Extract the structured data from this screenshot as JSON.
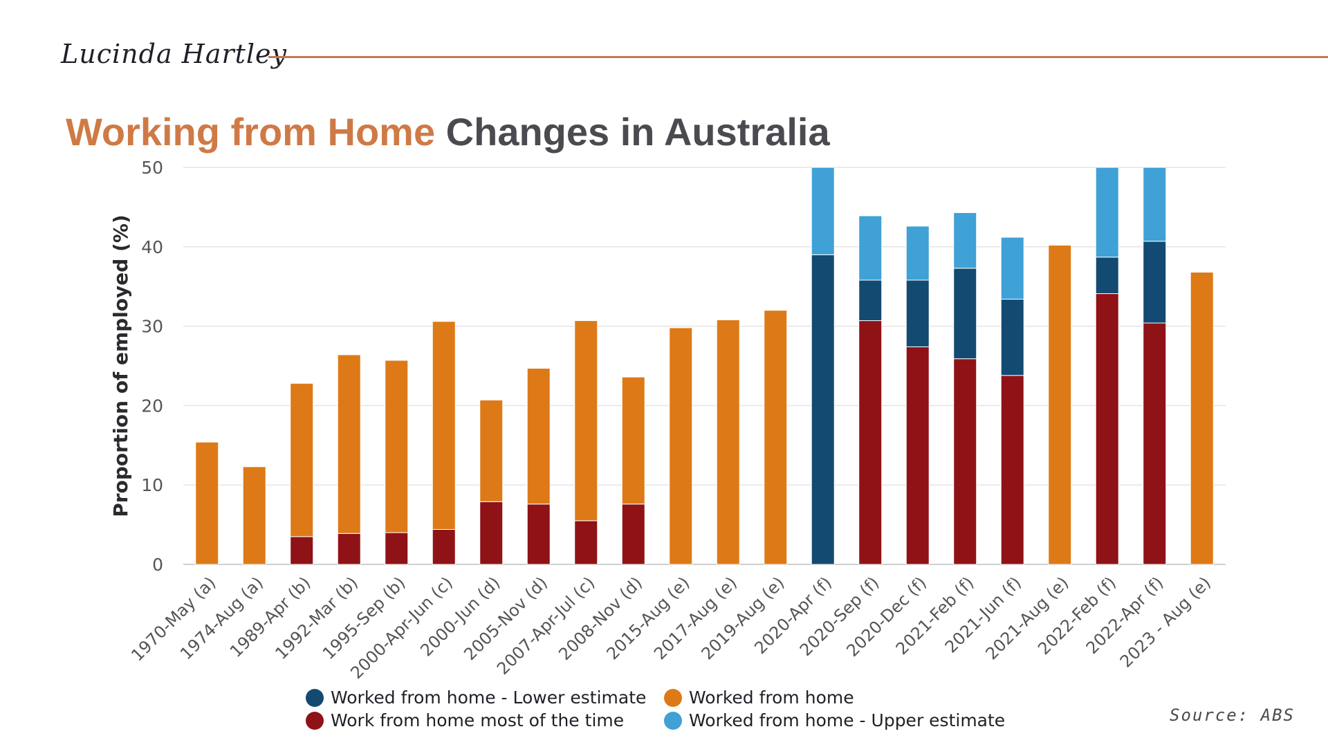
{
  "header": {
    "author": "Lucinda Hartley",
    "title_accent": "Working from Home",
    "title_rest": "Changes in Australia",
    "source": "Source: ABS"
  },
  "colors": {
    "lower_estimate": "#134a72",
    "worked_from_home": "#dd7a17",
    "most_of_time": "#8f1217",
    "upper_estimate": "#3fa1d6",
    "accent": "#cf7a46",
    "grid": "#e4e4e4"
  },
  "chart_data": {
    "type": "bar",
    "stacked": true,
    "title": "Working from Home Changes in Australia",
    "ylabel": "Proportion of employed (%)",
    "xlabel": "",
    "ylim": [
      0,
      50
    ],
    "yticks": [
      0,
      10,
      20,
      30,
      40,
      50
    ],
    "grid": true,
    "legend_position": "bottom",
    "categories": [
      "1970-May (a)",
      "1974-Aug (a)",
      "1989-Apr (b)",
      "1992-Mar (b)",
      "1995-Sep (b)",
      "2000-Apr-Jun (c)",
      "2000-Jun (d)",
      "2005-Nov (d)",
      "2007-Apr-Jul (c)",
      "2008-Nov (d)",
      "2015-Aug (e)",
      "2017-Aug (e)",
      "2019-Aug (e)",
      "2020-Apr (f)",
      "2020-Sep (f)",
      "2020-Dec (f)",
      "2021-Feb (f)",
      "2021-Jun (f)",
      "2021-Aug (e)",
      "2022-Feb (f)",
      "2022-Apr (f)",
      "2023 - Aug (e)"
    ],
    "series": [
      {
        "name": "Work from home most of the time",
        "color_key": "most_of_time",
        "values": [
          0,
          0,
          3.5,
          3.9,
          4.0,
          4.4,
          7.9,
          7.6,
          5.5,
          7.6,
          0,
          0,
          0,
          0,
          30.7,
          27.4,
          25.9,
          23.8,
          0,
          34.1,
          30.4,
          0
        ]
      },
      {
        "name": "Worked from home - Lower estimate",
        "color_key": "lower_estimate",
        "values": [
          0,
          0,
          0,
          0,
          0,
          0,
          0,
          0,
          0,
          0,
          0,
          0,
          0,
          39.0,
          5.1,
          8.4,
          11.4,
          9.6,
          0,
          4.6,
          10.3,
          0
        ]
      },
      {
        "name": "Worked from home",
        "color_key": "worked_from_home",
        "values": [
          15.4,
          12.3,
          19.3,
          22.5,
          21.7,
          26.2,
          12.8,
          17.1,
          25.2,
          16.0,
          29.8,
          30.8,
          32.0,
          0,
          0,
          0,
          0,
          0,
          40.2,
          0,
          0,
          36.8
        ]
      },
      {
        "name": "Worked from home - Upper estimate",
        "color_key": "upper_estimate",
        "values": [
          0,
          0,
          0,
          0,
          0,
          0,
          0,
          0,
          0,
          0,
          0,
          0,
          0,
          11.0,
          8.1,
          6.8,
          7.0,
          7.8,
          0,
          11.3,
          9.3,
          0
        ]
      }
    ],
    "legend": [
      {
        "label": "Worked from home - Lower estimate",
        "color_key": "lower_estimate"
      },
      {
        "label": "Worked from home",
        "color_key": "worked_from_home"
      },
      {
        "label": "Work from home most of the time",
        "color_key": "most_of_time"
      },
      {
        "label": "Worked from home - Upper estimate",
        "color_key": "upper_estimate"
      }
    ]
  }
}
